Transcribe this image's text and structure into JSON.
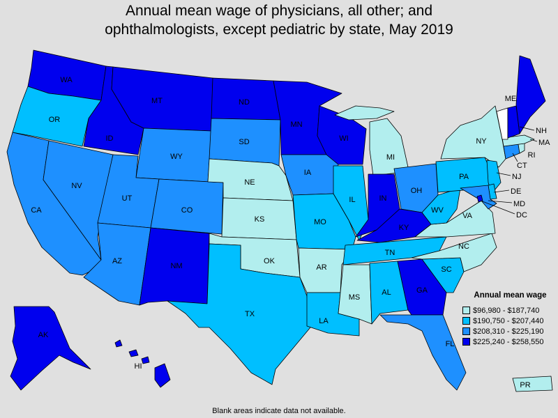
{
  "title_lines": [
    "Annual mean wage of physicians, all other; and",
    "ophthalmologists, except pediatric by state, May 2019"
  ],
  "legend": {
    "title": "Annual mean wage",
    "bins": [
      {
        "label": "$96,980 - $187,740",
        "color": "#b2eeee"
      },
      {
        "label": "$190,750 - $207,440",
        "color": "#00bfff"
      },
      {
        "label": "$208,310 - $225,190",
        "color": "#1e90ff"
      },
      {
        "label": "$225,240 - $258,550",
        "color": "#0000ee"
      }
    ]
  },
  "no_data_color": "#ffffff",
  "footnote": "Blank areas indicate data not available.",
  "states": {
    "WA": {
      "label": "WA",
      "bin": 3
    },
    "OR": {
      "label": "OR",
      "bin": 1
    },
    "CA": {
      "label": "CA",
      "bin": 2
    },
    "NV": {
      "label": "NV",
      "bin": 2
    },
    "ID": {
      "label": "ID",
      "bin": 3
    },
    "MT": {
      "label": "MT",
      "bin": 3
    },
    "WY": {
      "label": "WY",
      "bin": 2
    },
    "UT": {
      "label": "UT",
      "bin": 2
    },
    "AZ": {
      "label": "AZ",
      "bin": 2
    },
    "CO": {
      "label": "CO",
      "bin": 2
    },
    "NM": {
      "label": "NM",
      "bin": 3
    },
    "ND": {
      "label": "ND",
      "bin": 3
    },
    "SD": {
      "label": "SD",
      "bin": 2
    },
    "NE": {
      "label": "NE",
      "bin": 0
    },
    "KS": {
      "label": "KS",
      "bin": 0
    },
    "OK": {
      "label": "OK",
      "bin": 0
    },
    "TX": {
      "label": "TX",
      "bin": 1
    },
    "MN": {
      "label": "MN",
      "bin": 3
    },
    "IA": {
      "label": "IA",
      "bin": 2
    },
    "MO": {
      "label": "MO",
      "bin": 1
    },
    "AR": {
      "label": "AR",
      "bin": 0
    },
    "LA": {
      "label": "LA",
      "bin": 1
    },
    "WI": {
      "label": "WI",
      "bin": 3
    },
    "IL": {
      "label": "IL",
      "bin": 1
    },
    "MI": {
      "label": "MI",
      "bin": 0
    },
    "IN": {
      "label": "IN",
      "bin": 3
    },
    "OH": {
      "label": "OH",
      "bin": 2
    },
    "KY": {
      "label": "KY",
      "bin": 3
    },
    "TN": {
      "label": "TN",
      "bin": 1
    },
    "MS": {
      "label": "MS",
      "bin": 0
    },
    "AL": {
      "label": "AL",
      "bin": 1
    },
    "GA": {
      "label": "GA",
      "bin": 3
    },
    "FL": {
      "label": "FL",
      "bin": 2
    },
    "SC": {
      "label": "SC",
      "bin": 1
    },
    "NC": {
      "label": "NC",
      "bin": 0
    },
    "VA": {
      "label": "VA",
      "bin": 0
    },
    "WV": {
      "label": "WV",
      "bin": 1
    },
    "PA": {
      "label": "PA",
      "bin": 1
    },
    "NY": {
      "label": "NY",
      "bin": 0
    },
    "NJ": {
      "label": "NJ",
      "bin": 1
    },
    "DE": {
      "label": "DE",
      "bin": 1
    },
    "MD": {
      "label": "MD",
      "bin": 2
    },
    "DC": {
      "label": "DC",
      "bin": 3
    },
    "CT": {
      "label": "CT",
      "bin": 2
    },
    "RI": {
      "label": "RI",
      "bin": 0
    },
    "MA": {
      "label": "MA",
      "bin": 0
    },
    "VT": {
      "label": "",
      "bin": null
    },
    "NH": {
      "label": "NH",
      "bin": 3
    },
    "ME": {
      "label": "ME",
      "bin": 3
    },
    "AK": {
      "label": "AK",
      "bin": 3
    },
    "HI": {
      "label": "HI",
      "bin": 3
    },
    "PR": {
      "label": "PR",
      "bin": 0
    }
  }
}
